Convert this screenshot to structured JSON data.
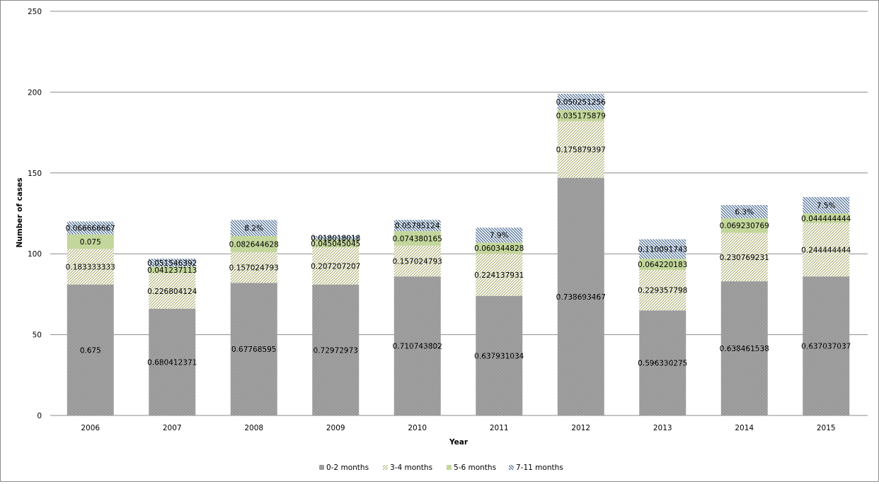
{
  "chart_data": {
    "type": "bar",
    "stacked": true,
    "title": "",
    "xlabel": "Year",
    "ylabel": "Number of cases",
    "ylim": [
      0,
      250
    ],
    "yticks": [
      0,
      50,
      100,
      150,
      200,
      250
    ],
    "grid": true,
    "legend_position": "bottom",
    "categories": [
      "2006",
      "2007",
      "2008",
      "2009",
      "2010",
      "2011",
      "2012",
      "2013",
      "2014",
      "2015"
    ],
    "totals": [
      120,
      97,
      121,
      111,
      121,
      116,
      199,
      109,
      130,
      135
    ],
    "series": [
      {
        "name": "0-2 months",
        "pattern": "checker",
        "color": "#3a3a3a",
        "proportions": [
          0.675,
          0.680412371,
          0.67768595,
          0.72972973,
          0.710743802,
          0.637931034,
          0.738693467,
          0.596330275,
          0.638461538,
          0.637037037
        ],
        "labels": [
          "0.675",
          "0.680412371",
          "0.67768595",
          "0.72972973",
          "0.710743802",
          "0.637931034",
          "0.738693467",
          "0.596330275",
          "0.638461538",
          "0.637037037"
        ]
      },
      {
        "name": "3-4 months",
        "pattern": "diagonal-up",
        "color": "#a9aa6a",
        "proportions": [
          0.183333333,
          0.226804124,
          0.157024793,
          0.207207207,
          0.157024793,
          0.224137931,
          0.175879397,
          0.229357798,
          0.230769231,
          0.244444444
        ],
        "labels": [
          "0.183333333",
          "0.226804124",
          "0.157024793",
          "0.207207207",
          "0.157024793",
          "0.224137931",
          "0.175879397",
          "0.229357798",
          "0.230769231",
          "0.244444444"
        ]
      },
      {
        "name": "5-6 months",
        "pattern": "solid",
        "color": "#c3d69b",
        "proportions": [
          0.075,
          0.041237113,
          0.082644628,
          0.045045045,
          0.074380165,
          0.060344828,
          0.035175879,
          0.064220183,
          0.069230769,
          0.044444444
        ],
        "labels": [
          "0.075",
          "0.041237113",
          "0.082644628",
          "0.045045045",
          "0.074380165",
          "0.060344828",
          "0.035175879",
          "0.064220183",
          "0.069230769",
          "0.044444444"
        ]
      },
      {
        "name": "7-11 months",
        "pattern": "diagonal-down",
        "color": "#4f6f95",
        "proportions": [
          0.066666667,
          0.051546392,
          0.082,
          0.018018018,
          0.05785124,
          0.079,
          0.050251256,
          0.110091743,
          0.063,
          0.075
        ],
        "labels": [
          "0.066666667",
          "0.051546392",
          "8.2%",
          "0.018018018",
          "0.05785124",
          "7.9%",
          "0.050251256",
          "0.110091743",
          "6.3%",
          "7.5%"
        ]
      }
    ]
  }
}
